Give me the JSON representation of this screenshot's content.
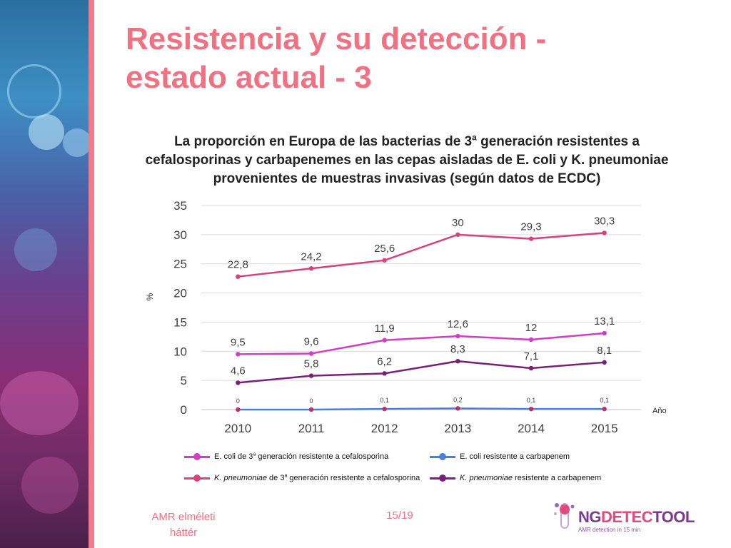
{
  "slide": {
    "title_line1": "Resistencia y su detección -",
    "title_line2": "estado actual - 3",
    "footer_left": "AMR elméleti háttér",
    "page_number": "15/19",
    "title_color": "#f07282"
  },
  "chart_title": {
    "part1": "La proporción en Europa de las bacterias de 3",
    "sup": "a",
    "part2": " generación resistentes a cefalosporinas y carbapenemes en las cepas aisladas de E. coli y K. pneumoniae provenientes de muestras invasivas (según datos de ECDC)"
  },
  "logo": {
    "name_part1": "NG",
    "name_part2": "DETEC",
    "name_part3": "TOOL",
    "tagline": "AMR detection in 15 min"
  },
  "chart_data": {
    "type": "line",
    "x": [
      "2010",
      "2011",
      "2012",
      "2013",
      "2014",
      "2015"
    ],
    "xlabel": "Año",
    "ylabel": "%",
    "ylim": [
      0,
      35
    ],
    "yticks": [
      0,
      5,
      10,
      15,
      20,
      25,
      30,
      35
    ],
    "grid": true,
    "legend_position": "bottom",
    "series": [
      {
        "name_parts": [
          {
            "text": "E. coli de 3",
            "italic": false
          },
          {
            "text": "a",
            "italic": false,
            "sup": true
          },
          {
            "text": " generación resistente a cefalosporina",
            "italic": false
          }
        ],
        "values": [
          9.5,
          9.6,
          11.9,
          12.6,
          12,
          13.1
        ],
        "labels": [
          "9,5",
          "9,6",
          "11,9",
          "12,6",
          "12",
          "13,1"
        ],
        "color": "#cf3fc4",
        "label_size": "large"
      },
      {
        "name_parts": [
          {
            "text": "E. coli resistente a carbapenem",
            "italic": false
          }
        ],
        "values": [
          0,
          0,
          0.1,
          0.2,
          0.1,
          0.1
        ],
        "labels": [
          "0",
          "0",
          "0,1",
          "0,2",
          "0,1",
          "0,1"
        ],
        "color": "#4a7fdc",
        "marker_color": "#c0306a",
        "label_size": "small"
      },
      {
        "name_parts": [
          {
            "text": "K. pneumoniae",
            "italic": true
          },
          {
            "text": " de 3",
            "italic": false
          },
          {
            "text": "a",
            "italic": false,
            "sup": true
          },
          {
            "text": " generación resistente a cefalosporina",
            "italic": false
          }
        ],
        "values": [
          22.8,
          24.2,
          25.6,
          30,
          29.3,
          30.3
        ],
        "labels": [
          "22,8",
          "24,2",
          "25,6",
          "30",
          "29,3",
          "30,3"
        ],
        "color": "#d4437a",
        "label_size": "large"
      },
      {
        "name_parts": [
          {
            "text": "K. pneumoniae",
            "italic": true
          },
          {
            "text": " resistente a carbapenem",
            "italic": false
          }
        ],
        "values": [
          4.6,
          5.8,
          6.2,
          8.3,
          7.1,
          8.1
        ],
        "labels": [
          "4,6",
          "5,8",
          "6,2",
          "8,3",
          "7,1",
          "8,1"
        ],
        "color": "#7a1f78",
        "label_size": "large"
      }
    ]
  }
}
